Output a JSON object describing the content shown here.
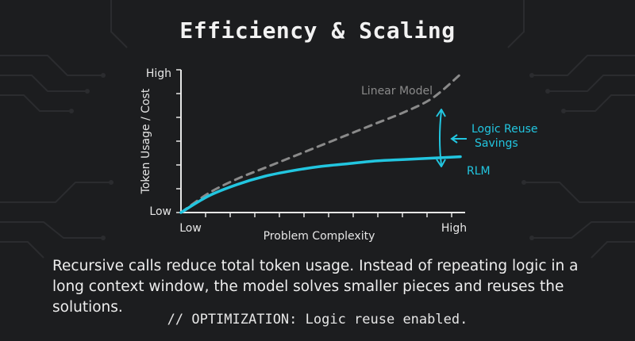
{
  "title": "Efficiency & Scaling",
  "caption": "Recursive calls reduce total token usage. Instead of repeating logic in a long context window, the model solves smaller pieces and reuses the solutions.",
  "footer": "// OPTIMIZATION: Logic reuse enabled.",
  "colors": {
    "background": "#1c1d1f",
    "rlm": "#22c6e0",
    "linear": "#8a8a8a",
    "axis": "#e6e6e6"
  },
  "chart_data": {
    "type": "line",
    "title": "",
    "xlabel": "Problem Complexity",
    "ylabel": "Token Usage / Cost",
    "xtick_labels": [
      "Low",
      "High"
    ],
    "ytick_labels": [
      "Low",
      "High"
    ],
    "xlim": [
      0,
      1
    ],
    "ylim": [
      0,
      1
    ],
    "grid": false,
    "series": [
      {
        "name": "Linear Model",
        "style": "dashed",
        "x": [
          0,
          0.1,
          0.2,
          0.3,
          0.4,
          0.5,
          0.6,
          0.7,
          0.8,
          0.9,
          1.0
        ],
        "y": [
          0,
          0.14,
          0.24,
          0.32,
          0.4,
          0.48,
          0.56,
          0.64,
          0.72,
          0.82,
          0.99
        ]
      },
      {
        "name": "RLM",
        "style": "solid",
        "x": [
          0,
          0.1,
          0.2,
          0.3,
          0.4,
          0.5,
          0.6,
          0.7,
          0.8,
          0.9,
          1.0
        ],
        "y": [
          0,
          0.12,
          0.2,
          0.26,
          0.3,
          0.33,
          0.35,
          0.37,
          0.38,
          0.39,
          0.4
        ]
      }
    ],
    "annotation": "Logic Reuse Savings"
  }
}
